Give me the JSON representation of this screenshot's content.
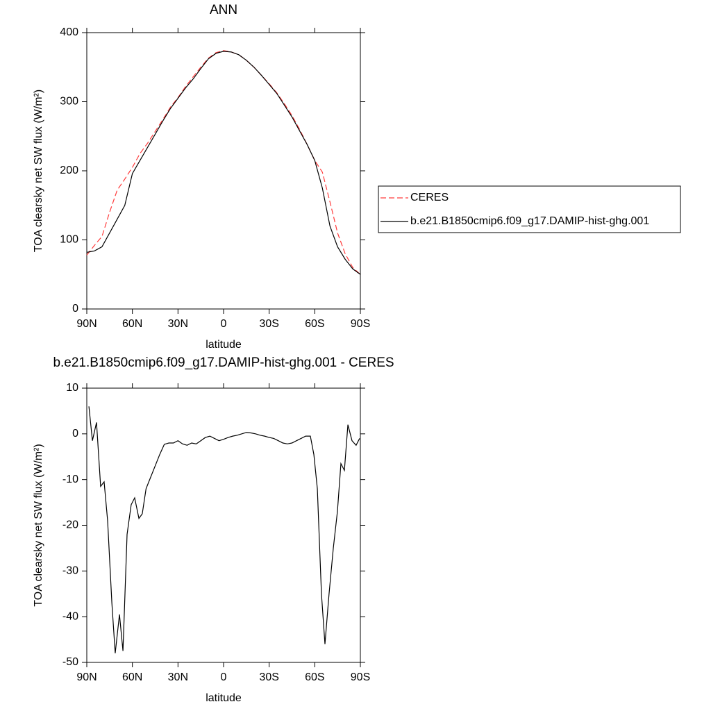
{
  "chart_data": [
    {
      "type": "line",
      "title": "ANN",
      "xlabel": "latitude",
      "ylabel": "TOA clearsky net SW flux (W/m²)",
      "x": [
        90,
        85,
        80,
        75,
        70,
        65,
        60,
        55,
        50,
        45,
        40,
        35,
        30,
        25,
        20,
        15,
        10,
        5,
        0,
        -5,
        -10,
        -15,
        -20,
        -25,
        -30,
        -35,
        -40,
        -45,
        -50,
        -55,
        -60,
        -65,
        -70,
        -75,
        -80,
        -85,
        -90
      ],
      "series": [
        {
          "name": "CERES",
          "color": "#ff3b3b",
          "dashed": true,
          "values": [
            78,
            92,
            105,
            140,
            172,
            188,
            205,
            225,
            240,
            257,
            274,
            292,
            306,
            322,
            336,
            350,
            363,
            371,
            374,
            372,
            368,
            360,
            350,
            338,
            326,
            313,
            297,
            280,
            260,
            238,
            215,
            198,
            155,
            110,
            80,
            60,
            50
          ]
        },
        {
          "name": "b.e21.B1850cmip6.f09_g17.DAMIP-hist-ghg.001",
          "color": "#000000",
          "dashed": false,
          "values": [
            82,
            84,
            90,
            110,
            130,
            150,
            196,
            215,
            234,
            253,
            272,
            290,
            305,
            320,
            333,
            348,
            362,
            370,
            373,
            372,
            368,
            360,
            350,
            338,
            325,
            312,
            295,
            278,
            258,
            238,
            215,
            175,
            120,
            90,
            72,
            58,
            50
          ]
        }
      ],
      "xlim": [
        90,
        -90
      ],
      "xticks": [
        {
          "value": 90,
          "label": "90N"
        },
        {
          "value": 60,
          "label": "60N"
        },
        {
          "value": 30,
          "label": "30N"
        },
        0,
        {
          "value": -30,
          "label": "30S"
        },
        {
          "value": -60,
          "label": "60S"
        },
        {
          "value": -90,
          "label": "90S"
        }
      ],
      "ylim": [
        0,
        400
      ],
      "yticks": [
        0,
        100,
        200,
        300,
        400
      ],
      "legend": "right"
    },
    {
      "type": "line",
      "title": "b.e21.B1850cmip6.f09_g17.DAMIP-hist-ghg.001 - CERES",
      "xlabel": "latitude",
      "ylabel": "TOA clearsky net SW flux (W/m²)",
      "x": [
        88.6,
        86.3,
        83.6,
        80.9,
        78.6,
        76.3,
        73.5,
        71.3,
        68.5,
        66.2,
        63.5,
        60.8,
        58.5,
        55.7,
        53.5,
        51,
        48,
        45,
        42,
        39,
        36,
        33,
        30,
        27,
        24,
        21,
        18,
        15,
        12,
        9,
        6,
        3,
        0,
        -3,
        -6,
        -9,
        -12,
        -15,
        -18,
        -21,
        -24,
        -27,
        -30,
        -33,
        -36,
        -39,
        -42,
        -45,
        -48,
        -51,
        -54,
        -57.1,
        -59.4,
        -61.7,
        -64.4,
        -66.7,
        -69.4,
        -72.2,
        -74.9,
        -77.2,
        -79.5,
        -81.8,
        -84.5,
        -87.2,
        -89.5
      ],
      "values": [
        6,
        -1.5,
        2.5,
        -11.5,
        -10.5,
        -19,
        -37,
        -48,
        -39.5,
        -47.5,
        -22,
        -15.5,
        -14,
        -18.5,
        -17.5,
        -12,
        -9.5,
        -7,
        -4.5,
        -2.3,
        -2,
        -2,
        -1.5,
        -2.2,
        -2.5,
        -2,
        -2.2,
        -1.5,
        -0.8,
        -0.5,
        -1,
        -1.5,
        -1.2,
        -0.8,
        -0.5,
        -0.3,
        0,
        0.3,
        0.2,
        0,
        -0.3,
        -0.5,
        -0.8,
        -1,
        -1.5,
        -2,
        -2.2,
        -2,
        -1.5,
        -1,
        -0.5,
        -0.5,
        -4.5,
        -12,
        -35,
        -46,
        -35,
        -25,
        -17,
        -6.5,
        -8,
        2,
        -1.5,
        -2.5,
        -1
      ],
      "color": "#000000",
      "xlim": [
        90,
        -90
      ],
      "xticks": [
        {
          "value": 90,
          "label": "90N"
        },
        {
          "value": 60,
          "label": "60N"
        },
        {
          "value": 30,
          "label": "30N"
        },
        0,
        {
          "value": -30,
          "label": "30S"
        },
        {
          "value": -60,
          "label": "60S"
        },
        {
          "value": -90,
          "label": "90S"
        }
      ],
      "ylim": [
        -50,
        10
      ],
      "yticks": [
        -50,
        -40,
        -30,
        -20,
        -10,
        0,
        10
      ]
    }
  ]
}
